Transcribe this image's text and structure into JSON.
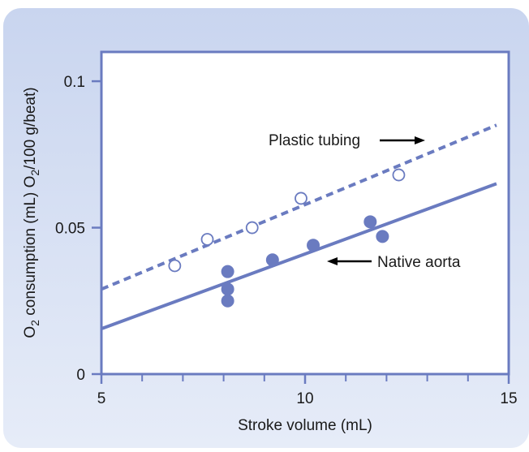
{
  "colors": {
    "panel_top": "#c9d5ef",
    "panel_bottom": "#e6ecf8",
    "plot_bg": "#ffffff",
    "axis_frame": "#6a7bc0",
    "series": "#6a7bc0",
    "text": "#1a1a1a",
    "arrow": "#000000"
  },
  "chart_data": {
    "type": "scatter",
    "title": "",
    "xlabel": "Stroke volume (mL)",
    "ylabel": {
      "part1": "O",
      "sub1": "2",
      "part2": " consumption (mL) O",
      "sub2": "2",
      "part3": "/100 g/beat)"
    },
    "xlim": [
      5,
      15
    ],
    "ylim": [
      0,
      0.11
    ],
    "x_ticks": [
      {
        "value": 5,
        "label": "5"
      },
      {
        "value": 10,
        "label": "10"
      },
      {
        "value": 15,
        "label": "15"
      }
    ],
    "x_minor_ticks": [
      6,
      7,
      8,
      9,
      11,
      12,
      13,
      14
    ],
    "y_ticks": [
      {
        "value": 0,
        "label": "0"
      },
      {
        "value": 0.05,
        "label": "0.05"
      },
      {
        "value": 0.1,
        "label": "0.1"
      }
    ],
    "grid": false,
    "series": [
      {
        "name": "Plastic tubing",
        "marker": "open-circle",
        "line_style": "dashed",
        "points": [
          {
            "x": 6.8,
            "y": 0.037
          },
          {
            "x": 7.6,
            "y": 0.046
          },
          {
            "x": 8.7,
            "y": 0.05
          },
          {
            "x": 9.9,
            "y": 0.06
          },
          {
            "x": 12.3,
            "y": 0.068
          }
        ],
        "fit": {
          "x0": 5,
          "y0": 0.029,
          "x1": 14.7,
          "y1": 0.085
        }
      },
      {
        "name": "Native aorta",
        "marker": "filled-circle",
        "line_style": "solid",
        "points": [
          {
            "x": 8.1,
            "y": 0.035
          },
          {
            "x": 8.1,
            "y": 0.029
          },
          {
            "x": 8.1,
            "y": 0.025
          },
          {
            "x": 9.2,
            "y": 0.039
          },
          {
            "x": 10.2,
            "y": 0.044
          },
          {
            "x": 11.6,
            "y": 0.052
          },
          {
            "x": 11.9,
            "y": 0.047
          }
        ],
        "fit": {
          "x0": 5,
          "y0": 0.0155,
          "x1": 14.7,
          "y1": 0.065
        }
      }
    ],
    "annotations": [
      {
        "text": "Plastic tubing",
        "series": "Plastic tubing",
        "arrow": "right"
      },
      {
        "text": "Native aorta",
        "series": "Native aorta",
        "arrow": "left"
      }
    ]
  }
}
